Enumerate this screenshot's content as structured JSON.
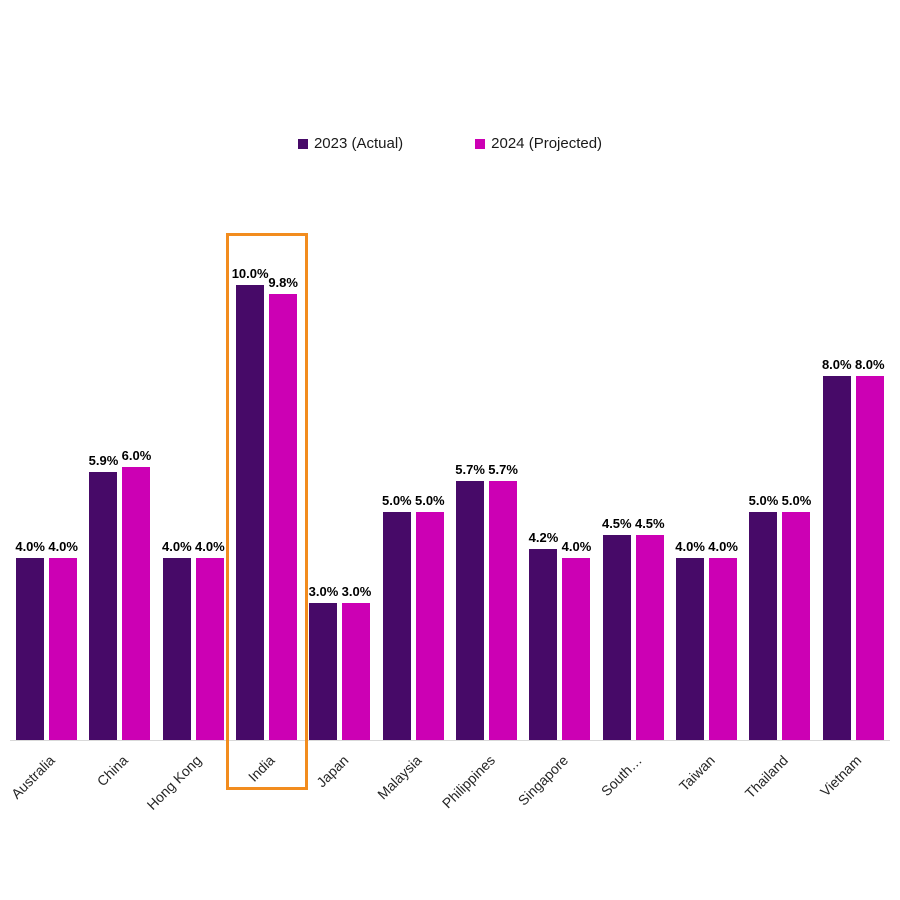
{
  "chart_data": {
    "type": "bar",
    "title": "",
    "categories": [
      "Australia",
      "China",
      "Hong Kong",
      "India",
      "Japan",
      "Malaysia",
      "Philippines",
      "Singapore",
      "South…",
      "Taiwan",
      "Thailand",
      "Vietnam"
    ],
    "series": [
      {
        "name": "2023 (Actual)",
        "color": "#470A68",
        "values": [
          4.0,
          5.9,
          4.0,
          10.0,
          3.0,
          5.0,
          5.7,
          4.2,
          4.5,
          4.0,
          5.0,
          8.0
        ],
        "labels": [
          "4.0%",
          "5.9%",
          "4.0%",
          "10.0%",
          "3.0%",
          "5.0%",
          "5.7%",
          "4.2%",
          "4.5%",
          "4.0%",
          "5.0%",
          "8.0%"
        ]
      },
      {
        "name": "2024 (Projected)",
        "color": "#CC00B4",
        "values": [
          4.0,
          6.0,
          4.0,
          9.8,
          3.0,
          5.0,
          5.7,
          4.0,
          4.5,
          4.0,
          5.0,
          8.0
        ],
        "labels": [
          "4.0%",
          "6.0%",
          "4.0%",
          "9.8%",
          "3.0%",
          "5.0%",
          "5.7%",
          "4.0%",
          "4.5%",
          "4.0%",
          "5.0%",
          "8.0%"
        ]
      }
    ],
    "ylim": [
      0,
      12.5
    ],
    "grid": false,
    "legend_position": "top-center",
    "axis_line_color": "#D9D9D9",
    "value_label_format": "0.0%",
    "highlight": {
      "category": "India",
      "border_color": "#F28C1E"
    }
  }
}
